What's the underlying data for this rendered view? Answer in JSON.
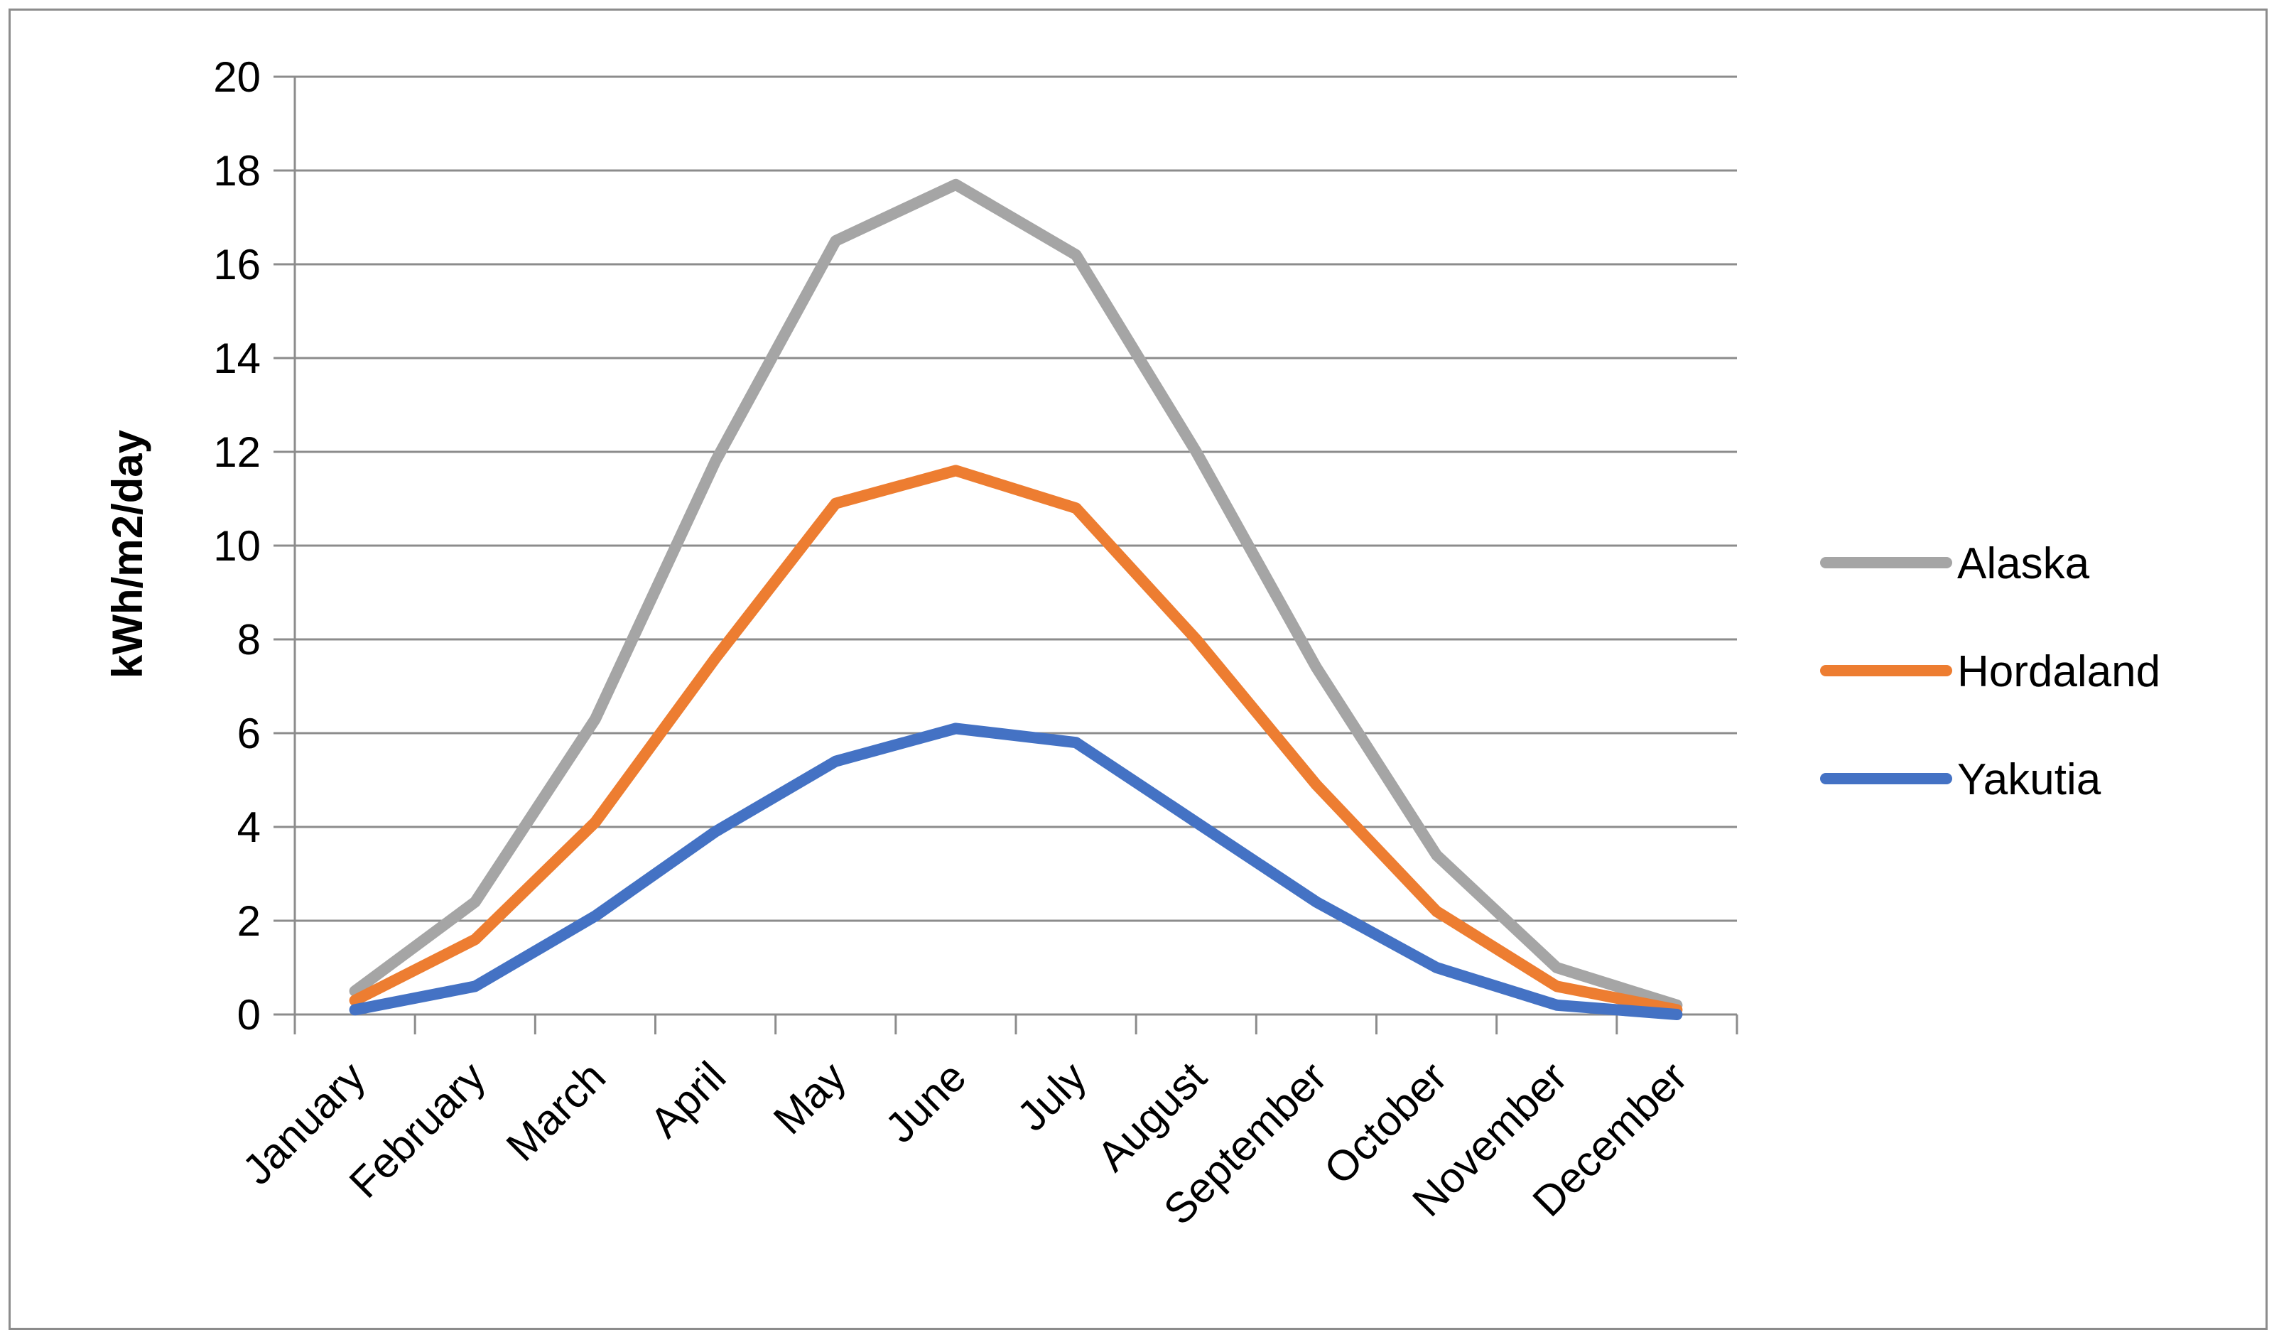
{
  "chart_data": {
    "type": "line",
    "title": "",
    "xlabel": "",
    "ylabel": "kWh/m2/day",
    "ylim": [
      0,
      20
    ],
    "ytick_step": 2,
    "grid": true,
    "legend_position": "right",
    "categories": [
      "January",
      "February",
      "March",
      "April",
      "May",
      "June",
      "July",
      "August",
      "September",
      "October",
      "November",
      "December"
    ],
    "series": [
      {
        "name": "Alaska",
        "color": "#a5a5a5",
        "values": [
          0.5,
          2.4,
          6.3,
          11.8,
          16.5,
          17.7,
          16.2,
          12.0,
          7.4,
          3.4,
          1.0,
          0.2
        ]
      },
      {
        "name": "Hordaland",
        "color": "#ed7d31",
        "values": [
          0.3,
          1.6,
          4.1,
          7.6,
          10.9,
          11.6,
          10.8,
          8.0,
          4.9,
          2.2,
          0.6,
          0.1
        ]
      },
      {
        "name": "Yakutia",
        "color": "#4472c4",
        "values": [
          0.1,
          0.6,
          2.1,
          3.9,
          5.4,
          6.1,
          5.8,
          4.1,
          2.4,
          1.0,
          0.2,
          0.0
        ]
      }
    ]
  }
}
